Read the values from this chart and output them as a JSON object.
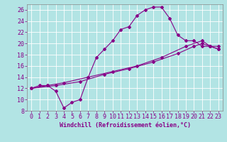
{
  "background_color": "#b2e4e4",
  "grid_color": "#c8d8d8",
  "line_color": "#880088",
  "marker_color": "#880088",
  "xlabel": "Windchill (Refroidissement éolien,°C)",
  "xlim": [
    -0.5,
    23.5
  ],
  "ylim": [
    8,
    27
  ],
  "xticks": [
    0,
    1,
    2,
    3,
    4,
    5,
    6,
    7,
    8,
    9,
    10,
    11,
    12,
    13,
    14,
    15,
    16,
    17,
    18,
    19,
    20,
    21,
    22,
    23
  ],
  "yticks": [
    8,
    10,
    12,
    14,
    16,
    18,
    20,
    22,
    24,
    26
  ],
  "curve1_x": [
    0,
    1,
    2,
    3,
    4,
    5,
    6,
    7,
    8,
    9,
    10,
    11,
    12,
    13,
    14,
    15,
    16,
    17,
    18,
    19,
    20,
    21,
    22,
    23
  ],
  "curve1_y": [
    12,
    12.5,
    12.5,
    11.5,
    8.5,
    9.5,
    10,
    14,
    17.5,
    19,
    20.5,
    22.5,
    23,
    25,
    26,
    26.5,
    26.5,
    24.5,
    21.5,
    20.5,
    20.5,
    19.5,
    19.5,
    19
  ],
  "curve2_x": [
    0,
    2,
    4,
    7,
    10,
    13,
    16,
    19,
    21,
    22,
    23
  ],
  "curve2_y": [
    12,
    12.5,
    13,
    14,
    15,
    16,
    17.5,
    19.5,
    20.5,
    19.5,
    19.5
  ],
  "curve3_x": [
    0,
    3,
    6,
    9,
    12,
    15,
    18,
    20,
    21,
    22,
    23
  ],
  "curve3_y": [
    12,
    12.5,
    13.2,
    14.5,
    15.5,
    16.7,
    18.2,
    19.5,
    20,
    19.5,
    19
  ],
  "font_size": 6,
  "marker_size": 2,
  "line_width": 0.8
}
